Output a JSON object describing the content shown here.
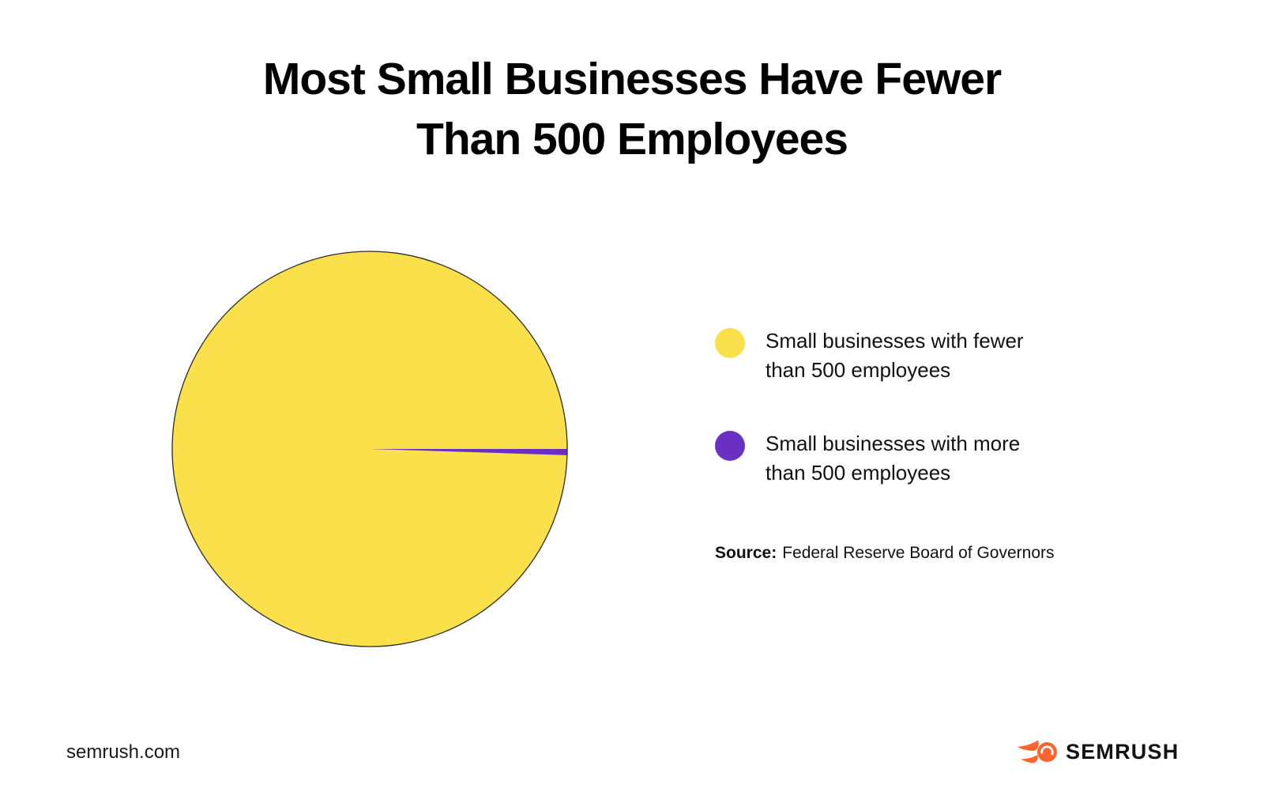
{
  "title": {
    "line1": "Most Small Businesses Have Fewer",
    "line2": "Than 500 Employees"
  },
  "chart_data": {
    "type": "pie",
    "title": "Most Small Businesses Have Fewer Than 500 Employees",
    "categories": [
      "Small businesses with fewer than 500 employees",
      "Small businesses with more than 500 employees"
    ],
    "values": [
      99.5,
      0.5
    ],
    "colors": [
      "#FAE14B",
      "#6930C3"
    ],
    "outline_color": "#2B2B2B",
    "legend_position": "right",
    "source": "Federal Reserve Board of Governors"
  },
  "legend": {
    "items": [
      {
        "label": "Small businesses with fewer than 500 employees",
        "color": "#FAE14B"
      },
      {
        "label": "Small businesses with more than 500 employees",
        "color": "#6930C3"
      }
    ]
  },
  "source": {
    "label": "Source:",
    "text": "Federal Reserve Board of Governors"
  },
  "footer": {
    "site": "semrush.com",
    "brand": "SEMRUSH",
    "brand_color": "#FF642D"
  }
}
